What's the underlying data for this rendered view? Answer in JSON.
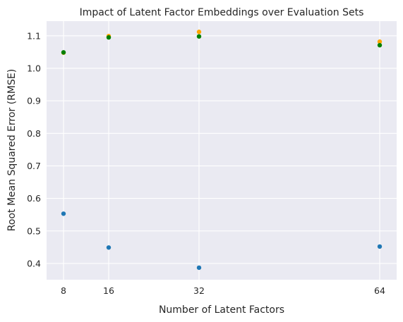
{
  "chart_data": {
    "type": "scatter",
    "title": "Impact of Latent Factor Embeddings over Evaluation Sets",
    "xlabel": "Number of Latent Factors",
    "ylabel": "Root Mean Squared Error (RMSE)",
    "x_ticks": [
      8,
      16,
      32,
      64
    ],
    "y_ticks": [
      0.4,
      0.5,
      0.6,
      0.7,
      0.8,
      0.9,
      1.0,
      1.1
    ],
    "xlim": [
      5,
      67
    ],
    "ylim": [
      0.35,
      1.145
    ],
    "grid": true,
    "legend": "none",
    "x": [
      8,
      16,
      32,
      64
    ],
    "series": [
      {
        "color": "#1f77b4",
        "values": [
          0.553,
          0.449,
          0.387,
          0.452
        ]
      },
      {
        "color": "#ffa500",
        "values": [
          1.048,
          1.099,
          1.112,
          1.082
        ]
      },
      {
        "color": "#008000",
        "values": [
          1.049,
          1.095,
          1.098,
          1.071
        ]
      }
    ],
    "background": "#eaeaf2"
  }
}
